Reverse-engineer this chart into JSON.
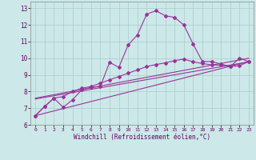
{
  "background_color": "#cce8e8",
  "line_color": "#993399",
  "grid_color": "#aacccc",
  "xlabel": "Windchill (Refroidissement éolien,°C)",
  "xlim": [
    -0.5,
    23.5
  ],
  "ylim": [
    6,
    13.4
  ],
  "xticks": [
    0,
    1,
    2,
    3,
    4,
    5,
    6,
    7,
    8,
    9,
    10,
    11,
    12,
    13,
    14,
    15,
    16,
    17,
    18,
    19,
    20,
    21,
    22,
    23
  ],
  "yticks": [
    6,
    7,
    8,
    9,
    10,
    11,
    12,
    13
  ],
  "line1_x": [
    0,
    1,
    2,
    3,
    4,
    5,
    6,
    7,
    8,
    9,
    10,
    11,
    12,
    13,
    14,
    15,
    16,
    17,
    18,
    19,
    20,
    21,
    22,
    23
  ],
  "line1_y": [
    6.55,
    7.1,
    7.6,
    7.05,
    7.5,
    8.1,
    8.25,
    8.3,
    9.75,
    9.45,
    10.8,
    11.4,
    12.65,
    12.85,
    12.55,
    12.45,
    12.0,
    10.85,
    9.8,
    9.8,
    9.65,
    9.5,
    10.0,
    9.8
  ],
  "line2_x": [
    0,
    1,
    2,
    3,
    4,
    5,
    6,
    7,
    8,
    9,
    10,
    11,
    12,
    13,
    14,
    15,
    16,
    17,
    18,
    19,
    20,
    21,
    22,
    23
  ],
  "line2_y": [
    6.55,
    7.1,
    7.6,
    7.7,
    8.0,
    8.2,
    8.3,
    8.5,
    8.7,
    8.9,
    9.1,
    9.3,
    9.5,
    9.62,
    9.72,
    9.85,
    9.95,
    9.78,
    9.68,
    9.6,
    9.58,
    9.5,
    9.55,
    9.8
  ],
  "line3_x": [
    0,
    23
  ],
  "line3_y": [
    6.55,
    9.8
  ],
  "line4_x": [
    0,
    23
  ],
  "line4_y": [
    7.55,
    9.78
  ],
  "line5_x": [
    0,
    23
  ],
  "line5_y": [
    7.6,
    10.0
  ],
  "marker": "D",
  "markersize": 2.0,
  "linewidth": 0.8
}
